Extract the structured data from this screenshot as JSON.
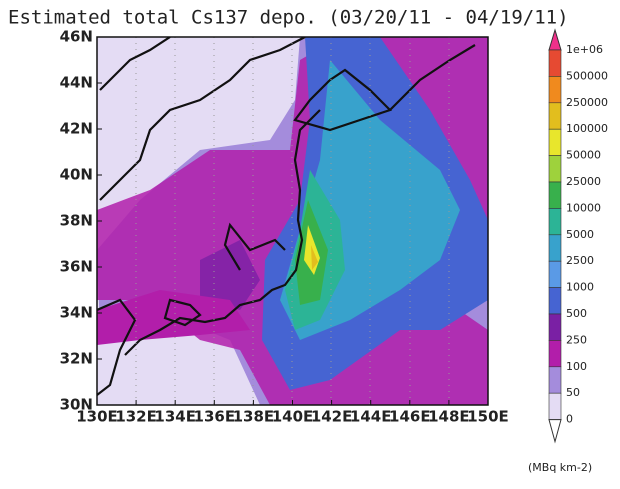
{
  "title": "Estimated total Cs137 depo. (03/20/11 - 04/19/11)",
  "lat_ticks": [
    "46N",
    "44N",
    "42N",
    "40N",
    "38N",
    "36N",
    "34N",
    "32N",
    "30N"
  ],
  "lon_ticks": [
    "130E",
    "132E",
    "134E",
    "136E",
    "138E",
    "140E",
    "142E",
    "144E",
    "146E",
    "148E",
    "150E"
  ],
  "colorbar": {
    "labels": [
      "1e+06",
      "500000",
      "250000",
      "100000",
      "50000",
      "25000",
      "10000",
      "5000",
      "2500",
      "1000",
      "500",
      "250",
      "100",
      "50",
      "0"
    ],
    "colors": [
      "#f0308a",
      "#e64a32",
      "#f08a1e",
      "#e2be1e",
      "#e8e62c",
      "#9ed23c",
      "#38b04c",
      "#2cb496",
      "#38a2cc",
      "#5a9ae6",
      "#4664d2",
      "#7a20a4",
      "#b21eaa",
      "#a48cdc",
      "#e4dcf4",
      "#ffffff"
    ],
    "unit": "(MBq km-2)"
  }
}
